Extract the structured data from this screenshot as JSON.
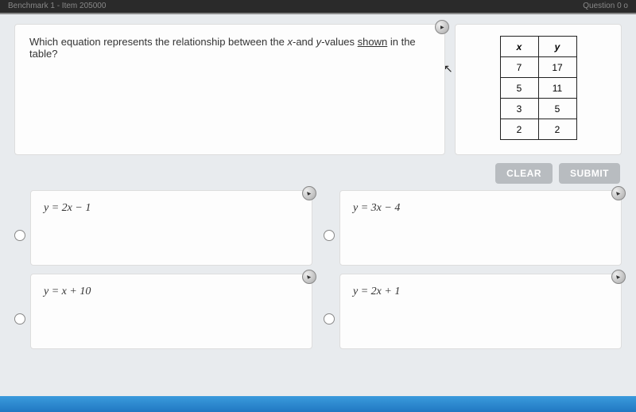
{
  "header": {
    "left": "Benchmark 1 - Item 205000",
    "right": "Question 0 o"
  },
  "question": {
    "text_pre": "Which equation represents the relationship between the ",
    "x_label": "x",
    "mid1": "-and ",
    "y_label": "y",
    "mid2": "-values ",
    "shown": "shown",
    "text_post": " in the table?"
  },
  "table": {
    "headers": [
      "x",
      "y"
    ],
    "rows": [
      [
        "7",
        "17"
      ],
      [
        "5",
        "11"
      ],
      [
        "3",
        "5"
      ],
      [
        "2",
        "2"
      ]
    ]
  },
  "buttons": {
    "clear": "CLEAR",
    "submit": "SUBMIT"
  },
  "choices": [
    {
      "equation": "y = 2x − 1"
    },
    {
      "equation": "y = 3x − 4"
    },
    {
      "equation": "y = x + 10"
    },
    {
      "equation": "y = 2x + 1"
    }
  ]
}
